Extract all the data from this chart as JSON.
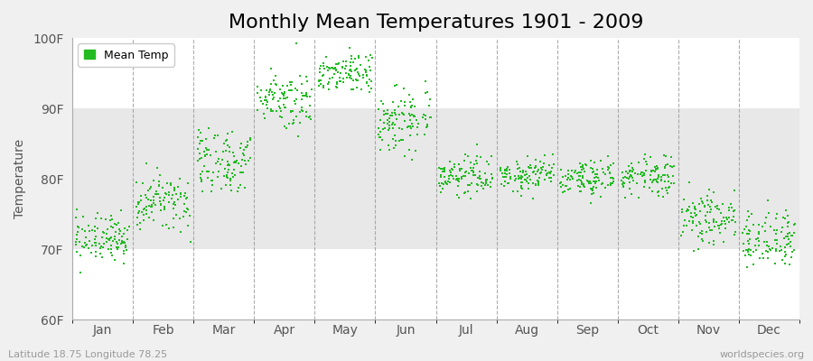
{
  "title": "Monthly Mean Temperatures 1901 - 2009",
  "ylabel": "Temperature",
  "background_color": "#f0f0f0",
  "plot_bg_color": "#ffffff",
  "band_color": "#e8e8e8",
  "dot_color": "#22bb22",
  "dot_size": 3,
  "ylim": [
    60,
    100
  ],
  "yticks": [
    60,
    70,
    80,
    90,
    100
  ],
  "ytick_labels": [
    "60F",
    "70F",
    "80F",
    "90F",
    "100F"
  ],
  "months": [
    "Jan",
    "Feb",
    "Mar",
    "Apr",
    "May",
    "Jun",
    "Jul",
    "Aug",
    "Sep",
    "Oct",
    "Nov",
    "Dec"
  ],
  "month_means": [
    71.5,
    76.5,
    82.5,
    91.5,
    95.0,
    88.5,
    80.5,
    80.5,
    80.0,
    80.5,
    74.5,
    71.5
  ],
  "month_stds": [
    1.6,
    2.0,
    2.5,
    2.0,
    1.5,
    2.5,
    1.3,
    1.3,
    1.4,
    1.4,
    2.0,
    2.0
  ],
  "years": 109,
  "legend_label": "Mean Temp",
  "watermark_left": "Latitude 18.75 Longitude 78.25",
  "watermark_right": "worldspecies.org",
  "grid_color": "#999999",
  "title_fontsize": 16,
  "label_fontsize": 10,
  "tick_fontsize": 10,
  "watermark_fontsize": 8
}
